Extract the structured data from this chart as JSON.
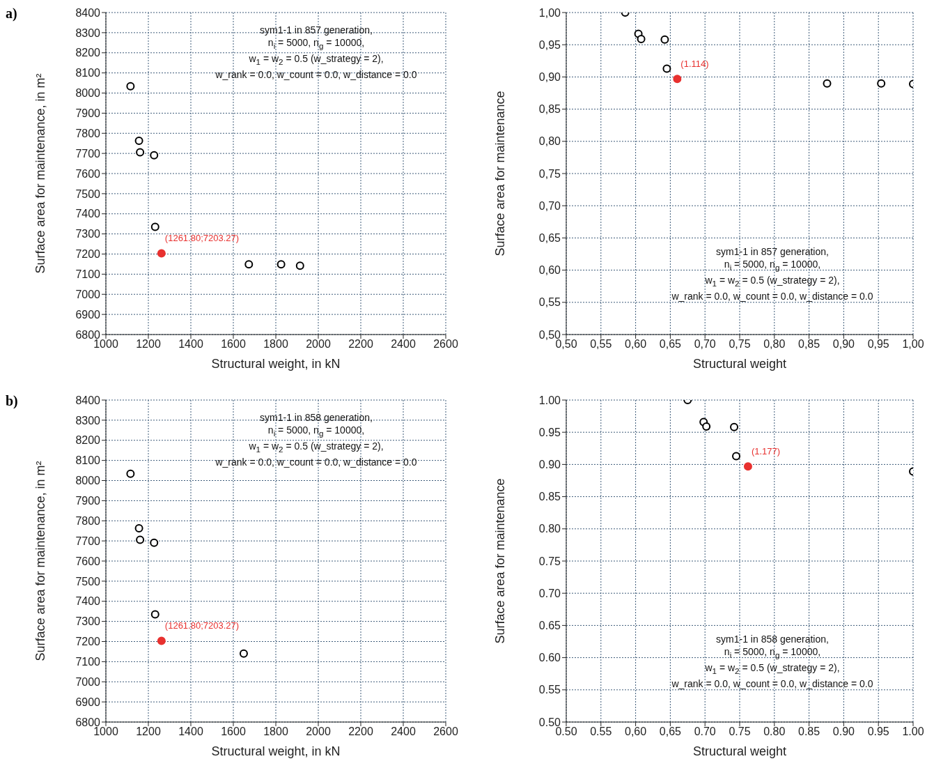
{
  "chart_data": [
    {
      "type": "scatter",
      "title": "a)",
      "xlabel": "Structural weight, in kN",
      "ylabel": "Surface area for maintenance, in m²",
      "series": [
        {
          "color": "#000000",
          "x": [
            1116,
            1156,
            1161,
            1227,
            1232,
            1673,
            1825,
            1914
          ],
          "values": [
            8034,
            7763,
            7706,
            7691,
            7335,
            7149,
            7149,
            7142
          ]
        },
        {
          "color": "#e8312f",
          "x": [
            1261.8
          ],
          "values": [
            7203.27
          ]
        }
      ],
      "xlim": [
        1000,
        2600
      ],
      "xticks": [
        1000,
        1200,
        1400,
        1600,
        1800,
        2000,
        2200,
        2400,
        2600
      ],
      "ylim": [
        6800,
        8400
      ],
      "yticks": [
        6800,
        6900,
        7000,
        7100,
        7200,
        7300,
        7400,
        7500,
        7600,
        7700,
        7800,
        7900,
        8000,
        8100,
        8200,
        8300,
        8400
      ],
      "grid": true,
      "marker": "circle",
      "annotations": [
        {
          "text": "(1261.80;7203.27)",
          "x": 1261.8,
          "y": 7203.27
        },
        "sym1-1 in 857 generation,",
        "n$_{i}$ = 5000, n$_{g}$ = 10000,",
        "w$_{1}$ = w$_{2}$ = 0.5 (w_strategy = 2),",
        "w_rank = 0.0, w_count = 0.0, w_distance = 0.0"
      ]
    },
    {
      "type": "scatter",
      "xlabel": "Structural weight",
      "ylabel": "Surface area for maintenance",
      "series": [
        {
          "color": "#000000",
          "x": [
            0.585,
            0.604,
            0.608,
            0.642,
            0.645,
            0.876,
            0.954,
            1.0
          ],
          "values": [
            1.0,
            0.967,
            0.959,
            0.958,
            0.913,
            0.89,
            0.89,
            0.889
          ]
        },
        {
          "color": "#e8312f",
          "x": [
            0.66
          ],
          "values": [
            0.897
          ]
        }
      ],
      "xlim": [
        0.5,
        1.0
      ],
      "xticks": [
        {
          "value": 0.5,
          "label": "0,50"
        },
        {
          "value": 0.55,
          "label": "0,55"
        },
        {
          "value": 0.6,
          "label": "0,60"
        },
        {
          "value": 0.65,
          "label": "0,65"
        },
        {
          "value": 0.7,
          "label": "0,70"
        },
        {
          "value": 0.75,
          "label": "0,75"
        },
        {
          "value": 0.8,
          "label": "0,80"
        },
        {
          "value": 0.85,
          "label": "0,85"
        },
        {
          "value": 0.9,
          "label": "0,90"
        },
        {
          "value": 0.95,
          "label": "0,95"
        },
        {
          "value": 1.0,
          "label": "1,00"
        }
      ],
      "ylim": [
        0.5,
        1.0
      ],
      "yticks": [
        {
          "value": 0.5,
          "label": "0,50"
        },
        {
          "value": 0.55,
          "label": "0,55"
        },
        {
          "value": 0.6,
          "label": "0,60"
        },
        {
          "value": 0.65,
          "label": "0,65"
        },
        {
          "value": 0.7,
          "label": "0,70"
        },
        {
          "value": 0.75,
          "label": "0,75"
        },
        {
          "value": 0.8,
          "label": "0,80"
        },
        {
          "value": 0.85,
          "label": "0,85"
        },
        {
          "value": 0.9,
          "label": "0,90"
        },
        {
          "value": 0.95,
          "label": "0,95"
        },
        {
          "value": 1.0,
          "label": "1,00"
        }
      ],
      "grid": true,
      "marker": "circle",
      "annotations": [
        {
          "text": "(1.114)",
          "x": 0.66,
          "y": 0.897
        },
        "sym1-1 in 857 generation,",
        "n$_{i}$ = 5000, n$_{g}$ = 10000,",
        "w$_{1}$ = w$_{2}$ = 0.5 (w_strategy = 2),",
        "w_rank = 0.0, w_count = 0.0, w_distance = 0.0"
      ]
    },
    {
      "type": "scatter",
      "title": "b)",
      "xlabel": "Structural weight, in kN",
      "ylabel": "Surface area for maintenance, in m²",
      "series": [
        {
          "color": "#000000",
          "x": [
            1116,
            1156,
            1161,
            1227,
            1232,
            1649
          ],
          "values": [
            8034,
            7763,
            7706,
            7691,
            7335,
            7140
          ]
        },
        {
          "color": "#e8312f",
          "x": [
            1261.8
          ],
          "values": [
            7203.27
          ]
        }
      ],
      "xlim": [
        1000,
        2600
      ],
      "xticks": [
        1000,
        1200,
        1400,
        1600,
        1800,
        2000,
        2200,
        2400,
        2600
      ],
      "ylim": [
        6800,
        8400
      ],
      "yticks": [
        6800,
        6900,
        7000,
        7100,
        7200,
        7300,
        7400,
        7500,
        7600,
        7700,
        7800,
        7900,
        8000,
        8100,
        8200,
        8300,
        8400
      ],
      "grid": true,
      "marker": "circle",
      "annotations": [
        {
          "text": "(1261.80;7203.27)",
          "x": 1261.8,
          "y": 7203.27
        },
        "sym1-1 in 858 generation,",
        "n$_{i}$ = 5000, n$_{g}$ = 10000,",
        "w$_{1}$ = w$_{2}$ = 0.5 (w_strategy = 2),",
        "w_rank = 0.0, w_count = 0.0, w_distance = 0.0"
      ]
    },
    {
      "type": "scatter",
      "xlabel": "Structural weight",
      "ylabel": "Surface area for maintenance",
      "series": [
        {
          "color": "#000000",
          "x": [
            0.675,
            0.698,
            0.702,
            0.742,
            0.745,
            1.0
          ],
          "values": [
            1.0,
            0.966,
            0.959,
            0.958,
            0.913,
            0.889
          ]
        },
        {
          "color": "#e8312f",
          "x": [
            0.762
          ],
          "values": [
            0.897
          ]
        }
      ],
      "xlim": [
        0.5,
        1.0
      ],
      "xticks": [
        {
          "value": 0.5,
          "label": "0.50"
        },
        {
          "value": 0.55,
          "label": "0.55"
        },
        {
          "value": 0.6,
          "label": "0,60"
        },
        {
          "value": 0.65,
          "label": "0,65"
        },
        {
          "value": 0.7,
          "label": "0.70"
        },
        {
          "value": 0.75,
          "label": "0.75"
        },
        {
          "value": 0.8,
          "label": "0.80"
        },
        {
          "value": 0.85,
          "label": "0.85"
        },
        {
          "value": 0.9,
          "label": "0.90"
        },
        {
          "value": 0.95,
          "label": "0.95"
        },
        {
          "value": 1.0,
          "label": "1.00"
        }
      ],
      "ylim": [
        0.5,
        1.0
      ],
      "yticks": [
        {
          "value": 0.5,
          "label": "0.50"
        },
        {
          "value": 0.55,
          "label": "0.55"
        },
        {
          "value": 0.6,
          "label": "0.60"
        },
        {
          "value": 0.65,
          "label": "0.65"
        },
        {
          "value": 0.7,
          "label": "0.70"
        },
        {
          "value": 0.75,
          "label": "0.75"
        },
        {
          "value": 0.8,
          "label": "0.80"
        },
        {
          "value": 0.85,
          "label": "0.85"
        },
        {
          "value": 0.9,
          "label": "0.90"
        },
        {
          "value": 0.95,
          "label": "0.95"
        },
        {
          "value": 1.0,
          "label": "1.00"
        }
      ],
      "grid": true,
      "marker": "circle",
      "annotations": [
        {
          "text": "(1.177)",
          "x": 0.762,
          "y": 0.897
        },
        "sym1-1 in 858 generation,",
        "n$_{i}$ = 5000, n$_{g}$ = 10000,",
        "w$_{1}$ = w$_{2}$ = 0.5 (w_strategy = 2),",
        "w_rank = 0.0, w_count = 0.0, w_distance = 0.0"
      ]
    }
  ]
}
